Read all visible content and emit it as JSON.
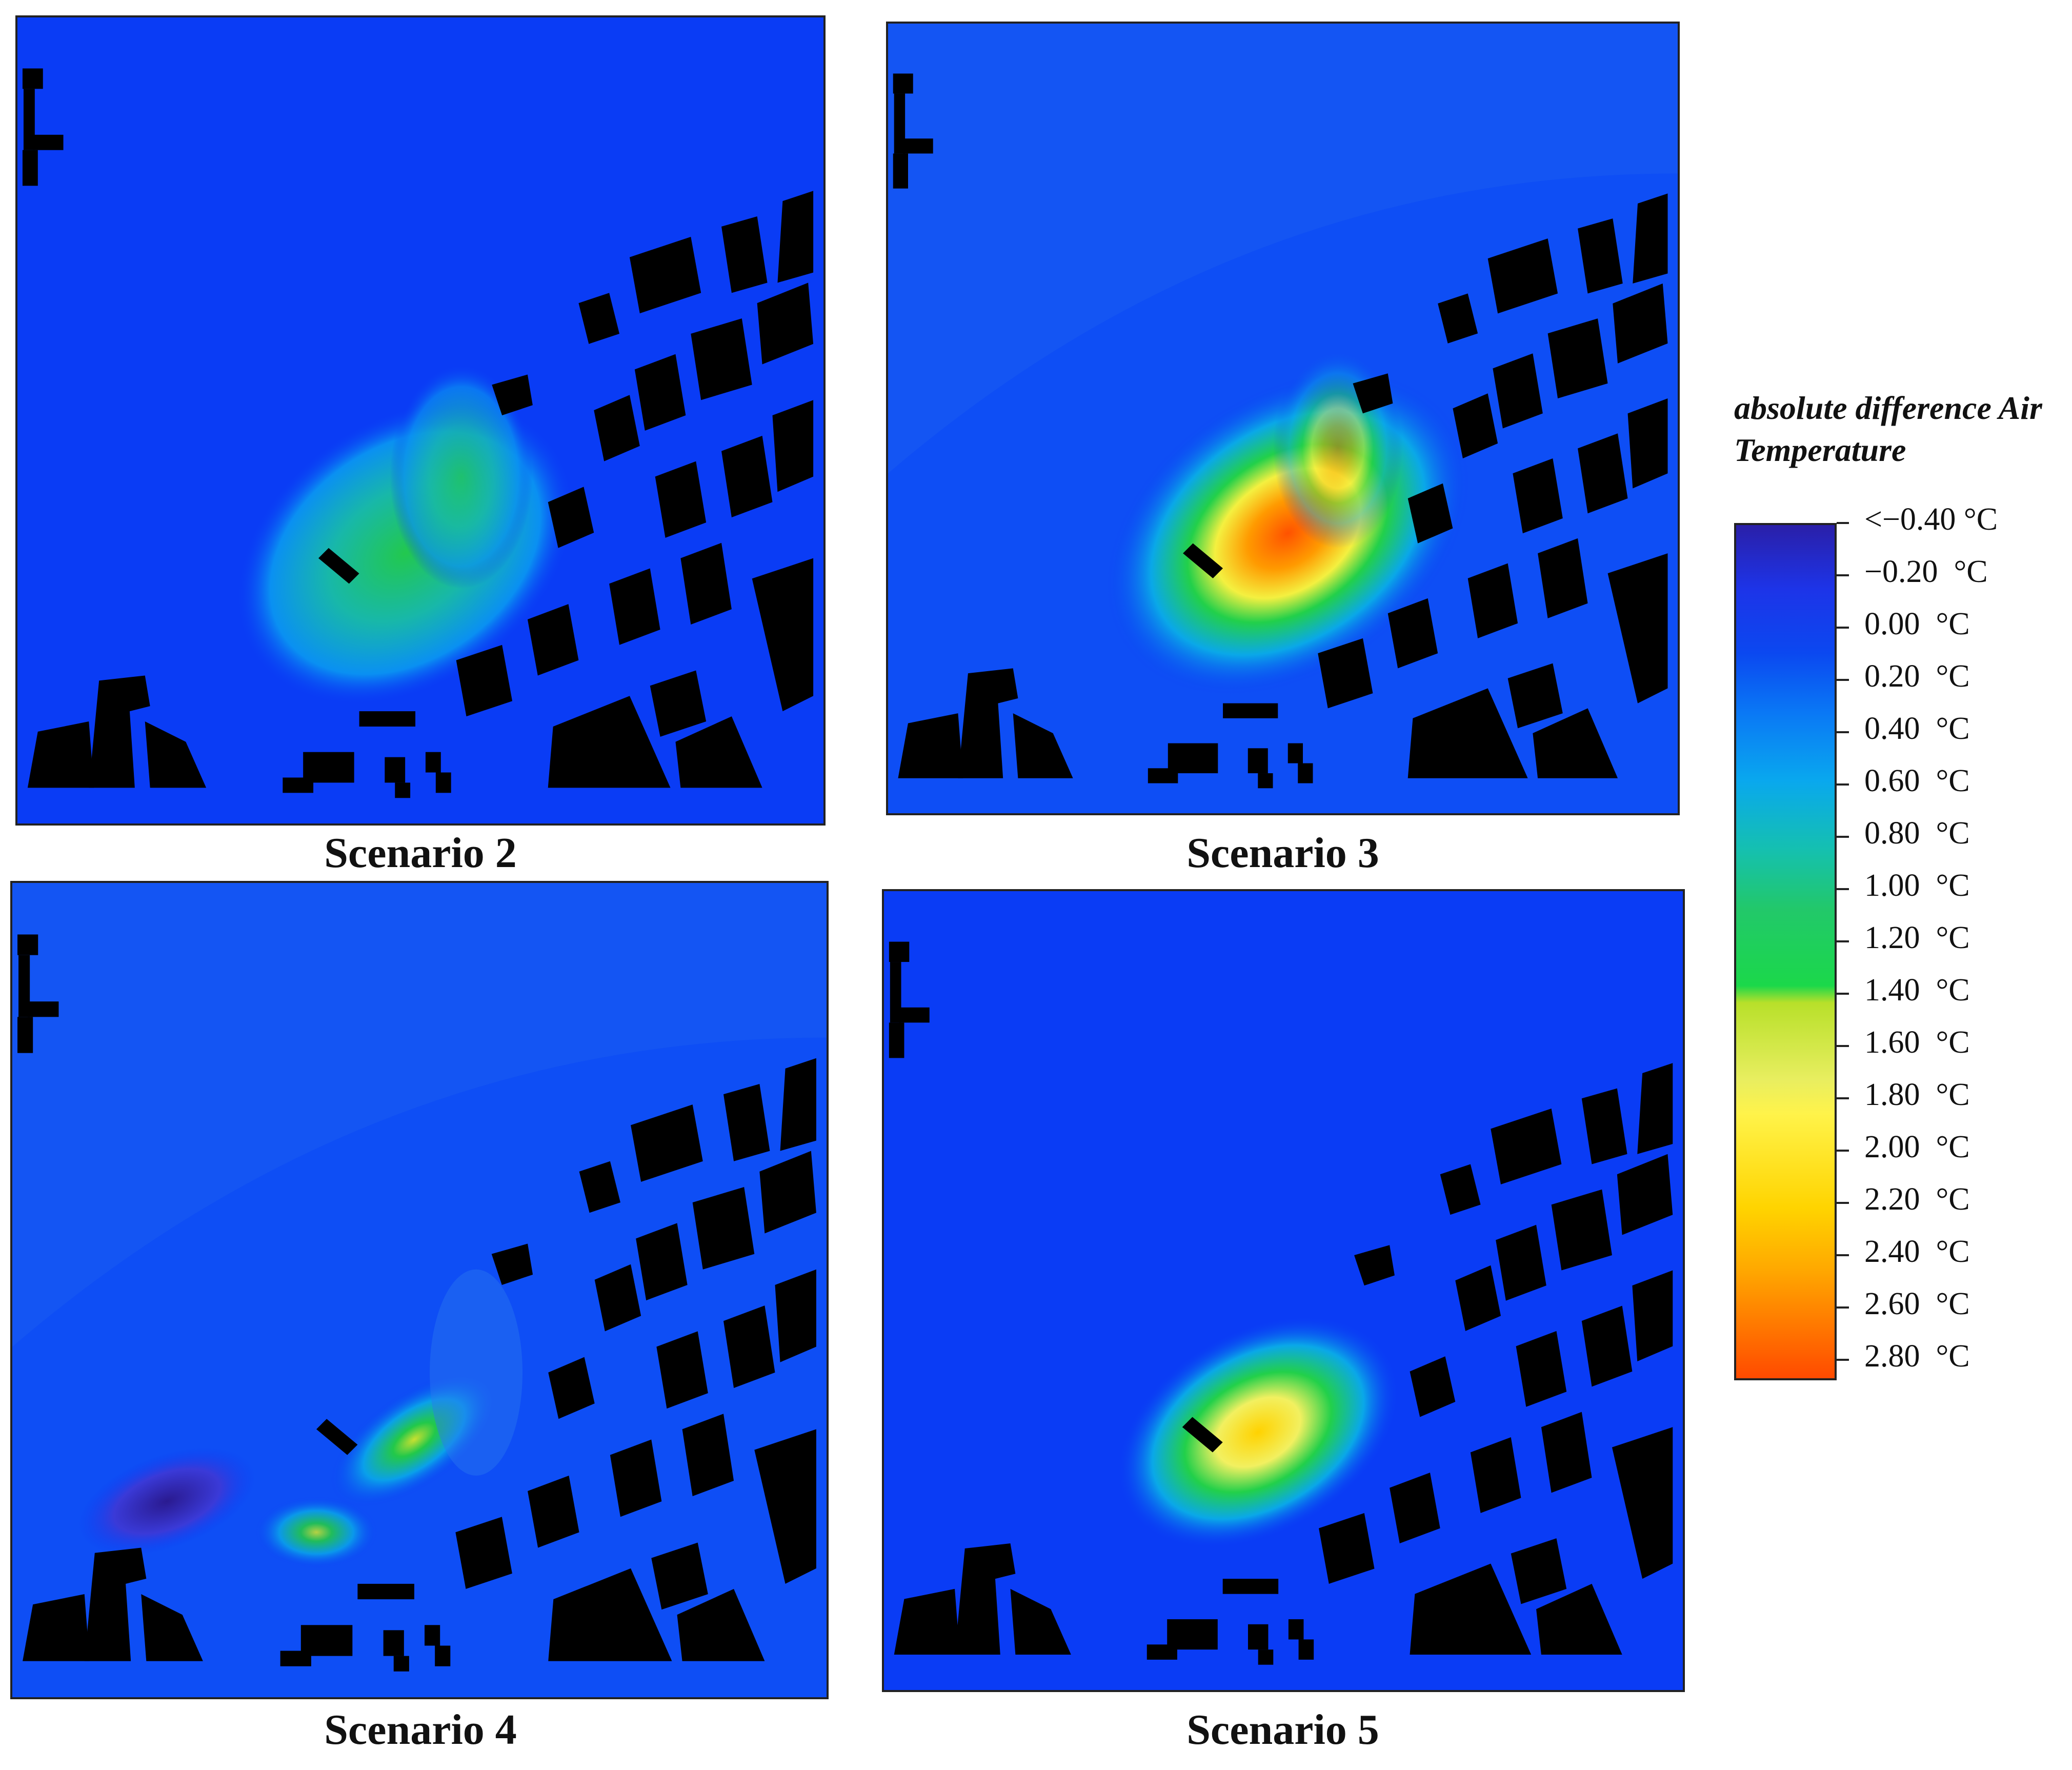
{
  "panels": [
    {
      "caption": "Scenario 2"
    },
    {
      "caption": "Scenario 3"
    },
    {
      "caption": "Scenario 4"
    },
    {
      "caption": "Scenario 5"
    }
  ],
  "legend": {
    "title_line1": "absolute difference Air",
    "title_line2": "Temperature",
    "labels": [
      "<−0.40 °C",
      "−0.20  °C",
      "0.00  °C",
      "0.20  °C",
      "0.40  °C",
      "0.60  °C",
      "0.80  °C",
      "1.00  °C",
      "1.20  °C",
      "1.40  °C",
      "1.60  °C",
      "1.80  °C",
      "2.00  °C",
      "2.20  °C",
      "2.40  °C",
      "2.60  °C",
      "2.80  °C"
    ]
  }
}
